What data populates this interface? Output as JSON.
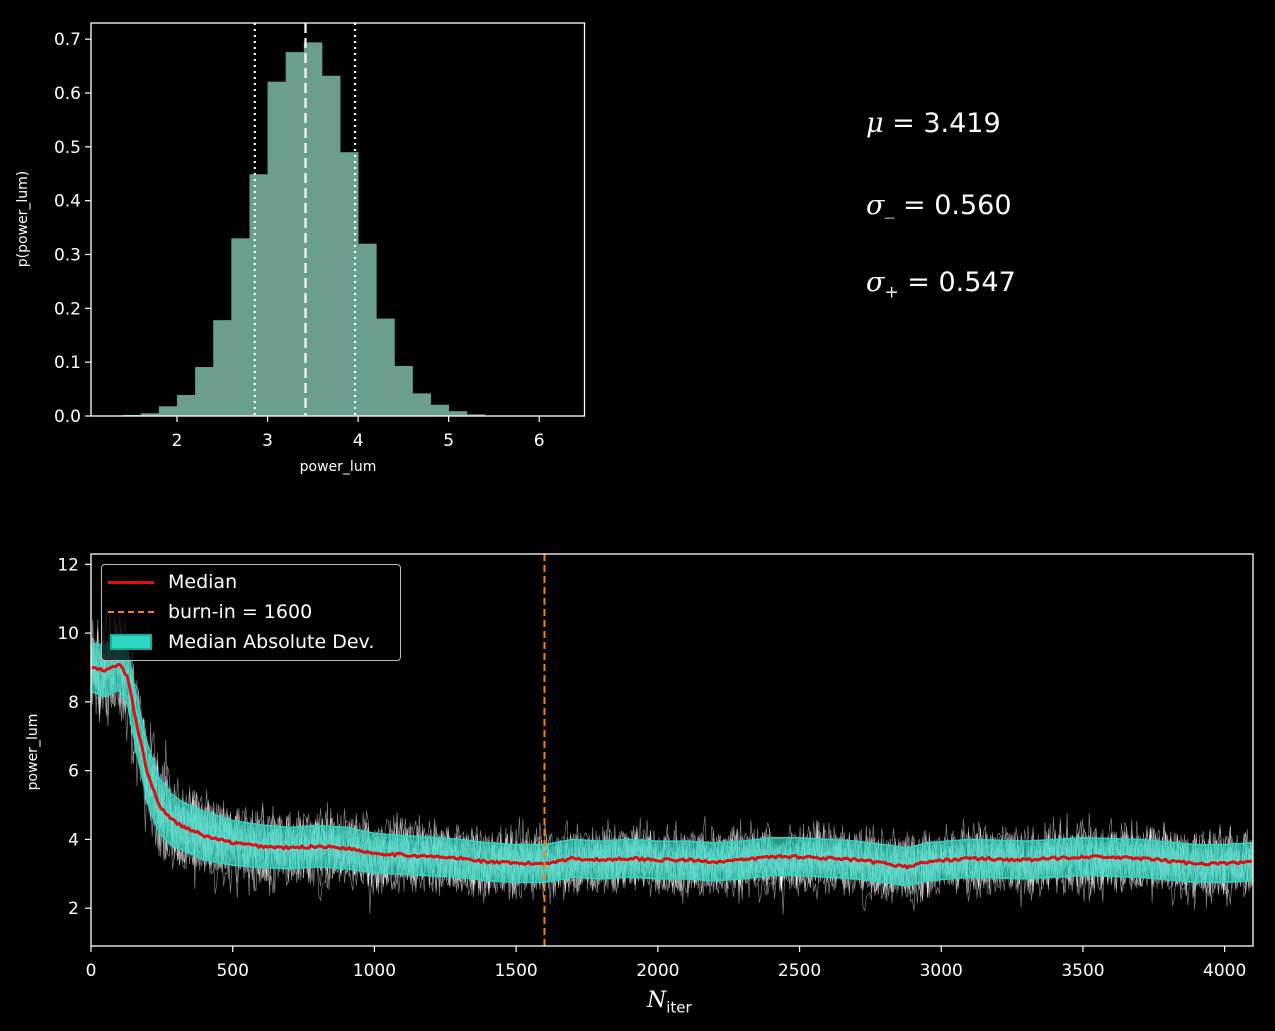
{
  "chart_data": [
    {
      "type": "bar",
      "name": "posterior histogram",
      "xlabel": "power_lum",
      "ylabel": "p(power_lum)",
      "xlim": [
        1.05,
        6.5
      ],
      "ylim": [
        0,
        0.73
      ],
      "xticks": [
        2,
        3,
        4,
        5,
        6
      ],
      "yticks": [
        0.0,
        0.1,
        0.2,
        0.3,
        0.4,
        0.5,
        0.6,
        0.7
      ],
      "bar_color": "#6a9e91",
      "bin_width": 0.2,
      "bin_left_edges": [
        1.4,
        1.6,
        1.8,
        2.0,
        2.2,
        2.4,
        2.6,
        2.8,
        3.0,
        3.2,
        3.4,
        3.6,
        3.8,
        4.0,
        4.2,
        4.4,
        4.6,
        4.8,
        5.0,
        5.2,
        5.4,
        5.6
      ],
      "values": [
        0.002,
        0.005,
        0.018,
        0.039,
        0.091,
        0.178,
        0.33,
        0.449,
        0.621,
        0.676,
        0.694,
        0.632,
        0.49,
        0.32,
        0.181,
        0.093,
        0.042,
        0.021,
        0.009,
        0.003,
        0.001,
        0.0005
      ],
      "median": 3.419,
      "lower": 2.859,
      "upper": 3.966
    },
    {
      "type": "line",
      "name": "trace plot",
      "xlabel": "N_iter",
      "ylabel": "power_lum",
      "xlim": [
        0,
        4100
      ],
      "ylim": [
        0.9,
        12.3
      ],
      "xticks": [
        0,
        500,
        1000,
        1500,
        2000,
        2500,
        3000,
        3500,
        4000
      ],
      "yticks": [
        2,
        4,
        6,
        8,
        10,
        12
      ],
      "burn_in": 1600,
      "series": [
        {
          "name": "Median",
          "color": "#dd1111",
          "x": [
            0,
            50,
            100,
            130,
            160,
            200,
            240,
            280,
            320,
            400,
            500,
            600,
            700,
            800,
            900,
            1000,
            1100,
            1200,
            1300,
            1400,
            1500,
            1600,
            1700,
            1800,
            1900,
            2000,
            2100,
            2200,
            2300,
            2400,
            2500,
            2600,
            2700,
            2800,
            2880,
            2950,
            3100,
            3300,
            3500,
            3700,
            3900,
            4000,
            4100
          ],
          "values": [
            9.0,
            8.9,
            9.1,
            8.7,
            7.4,
            5.9,
            5.0,
            4.6,
            4.4,
            4.1,
            3.9,
            3.8,
            3.75,
            3.8,
            3.75,
            3.6,
            3.55,
            3.5,
            3.45,
            3.35,
            3.3,
            3.3,
            3.45,
            3.4,
            3.45,
            3.4,
            3.4,
            3.35,
            3.4,
            3.5,
            3.5,
            3.45,
            3.4,
            3.3,
            3.2,
            3.35,
            3.45,
            3.4,
            3.5,
            3.45,
            3.3,
            3.3,
            3.35
          ]
        },
        {
          "name": "Median Absolute Dev.",
          "color": "#2fd6c0",
          "x": [
            0,
            50,
            100,
            130,
            160,
            200,
            240,
            280,
            320,
            400,
            500,
            600,
            700,
            800,
            900,
            1000,
            1100,
            1200,
            1300,
            1400,
            1500,
            1600,
            1700,
            1800,
            1900,
            2000,
            2100,
            2200,
            2300,
            2400,
            2500,
            2600,
            2700,
            2800,
            2880,
            2950,
            3100,
            3300,
            3500,
            3700,
            3900,
            4000,
            4100
          ],
          "half_width": [
            0.7,
            0.75,
            0.75,
            0.8,
            0.8,
            0.85,
            0.8,
            0.75,
            0.7,
            0.7,
            0.65,
            0.62,
            0.6,
            0.6,
            0.6,
            0.58,
            0.56,
            0.56,
            0.55,
            0.55,
            0.55,
            0.55,
            0.55,
            0.55,
            0.55,
            0.55,
            0.55,
            0.55,
            0.55,
            0.55,
            0.55,
            0.55,
            0.55,
            0.55,
            0.55,
            0.55,
            0.55,
            0.55,
            0.55,
            0.55,
            0.55,
            0.55,
            0.55
          ]
        }
      ]
    }
  ],
  "legend": {
    "median": "Median",
    "burn_in": "burn-in = 1600",
    "mad": "Median Absolute Dev."
  },
  "stats": {
    "mu": "3.419",
    "sigma_minus": "0.560",
    "sigma_plus": "0.547"
  },
  "x_title": "iter"
}
